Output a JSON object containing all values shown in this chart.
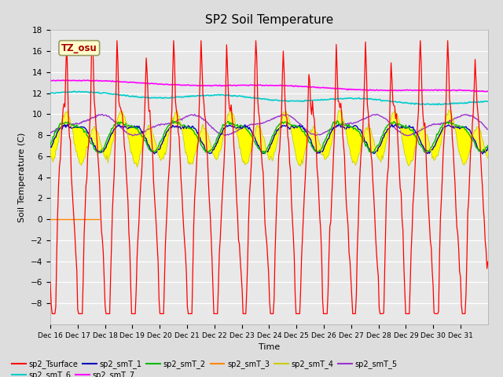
{
  "title": "SP2 Soil Temperature",
  "xlabel": "Time",
  "ylabel": "Soil Temperature (C)",
  "ylim": [
    -10,
    18
  ],
  "yticks": [
    -8,
    -6,
    -4,
    -2,
    0,
    2,
    4,
    6,
    8,
    10,
    12,
    14,
    16,
    18
  ],
  "x_tick_labels": [
    "Dec 16",
    "Dec 17",
    "Dec 18",
    "Dec 19",
    "Dec 20",
    "Dec 21",
    "Dec 22",
    "Dec 23",
    "Dec 24",
    "Dec 25",
    "Dec 26",
    "Dec 27",
    "Dec 28",
    "Dec 29",
    "Dec 30",
    "Dec 31"
  ],
  "colors": {
    "sp2_Tsurface": "#FF0000",
    "sp2_smT_1": "#0000BB",
    "sp2_smT_2": "#00BB00",
    "sp2_smT_3": "#FF8800",
    "sp2_smT_4": "#FFFF00",
    "sp2_smT_5": "#9933CC",
    "sp2_smT_6": "#00CCCC",
    "sp2_smT_7": "#FF00FF"
  },
  "bg_color": "#DDDDDD",
  "plot_bg": "#E8E8E8",
  "watermark_text": "TZ_osu",
  "watermark_color": "#AA0000",
  "watermark_bg": "#FFFFCC",
  "n_points": 480,
  "n_days": 16
}
